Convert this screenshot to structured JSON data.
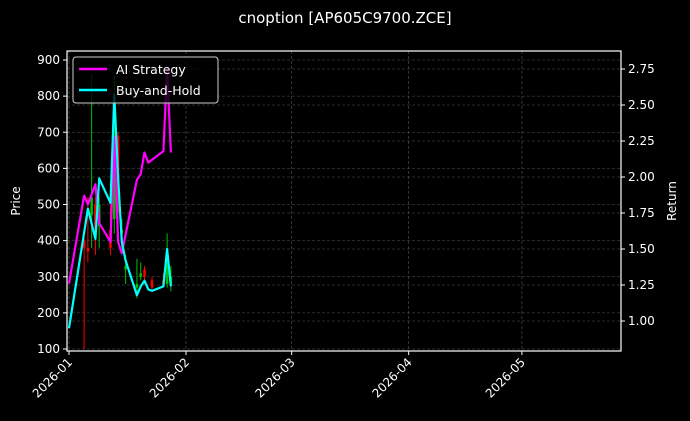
{
  "chart_data": {
    "type": "line",
    "title": "cnoption [AP605C9700.ZCE]",
    "xlabel": "",
    "ylabel": "Price",
    "y2label": "Return",
    "ylim": [
      93,
      920
    ],
    "y2lim": [
      0.8,
      2.87
    ],
    "grid": true,
    "legend_position": "upper left",
    "theme": "dark",
    "x_ticks": [
      "2026-01",
      "2026-02",
      "2026-03",
      "2026-04",
      "2026-05"
    ],
    "y_ticks": [
      100,
      200,
      300,
      400,
      500,
      600,
      700,
      800,
      900
    ],
    "y2_ticks": [
      "1.00",
      "1.25",
      "1.50",
      "1.75",
      "2.00",
      "2.25",
      "2.50",
      "2.75"
    ],
    "colors": {
      "ai_strategy": "#ff00ff",
      "buy_and_hold": "#00ffff",
      "candle_up": "#00c000",
      "candle_down": "#ff0000",
      "grid": "#555555",
      "axes": "#ffffff",
      "background": "#000000"
    },
    "series": [
      {
        "name": "AI Strategy",
        "axis": "return",
        "x": [
          "2026-01-01",
          "2026-01-05",
          "2026-01-06",
          "2026-01-08",
          "2026-01-09",
          "2026-01-12",
          "2026-01-13",
          "2026-01-14",
          "2026-01-15",
          "2026-01-16",
          "2026-01-19",
          "2026-01-20",
          "2026-01-21",
          "2026-01-22",
          "2026-01-23",
          "2026-01-26",
          "2026-01-27",
          "2026-01-28"
        ],
        "values": [
          1.26,
          1.87,
          1.81,
          1.95,
          1.68,
          1.55,
          2.28,
          1.55,
          1.47,
          1.6,
          1.98,
          2.02,
          2.17,
          2.1,
          2.12,
          2.18,
          2.75,
          2.17
        ]
      },
      {
        "name": "Buy-and-Hold",
        "axis": "return",
        "x": [
          "2026-01-01",
          "2026-01-06",
          "2026-01-08",
          "2026-01-09",
          "2026-01-12",
          "2026-01-13",
          "2026-01-14",
          "2026-01-15",
          "2026-01-16",
          "2026-01-19",
          "2026-01-20",
          "2026-01-21",
          "2026-01-22",
          "2026-01-23",
          "2026-01-26",
          "2026-01-27",
          "2026-01-28"
        ],
        "values": [
          0.95,
          1.78,
          1.57,
          1.99,
          1.82,
          2.57,
          2.0,
          1.55,
          1.42,
          1.18,
          1.24,
          1.28,
          1.22,
          1.21,
          1.24,
          1.5,
          1.24
        ]
      }
    ],
    "candles": [
      {
        "date": "2026-01-05",
        "open": 400,
        "close": 380,
        "high": 410,
        "low": 100
      },
      {
        "date": "2026-01-06",
        "open": 380,
        "close": 370,
        "high": 520,
        "low": 340
      },
      {
        "date": "2026-01-07",
        "open": 470,
        "close": 520,
        "high": 860,
        "low": 380
      },
      {
        "date": "2026-01-08",
        "open": 500,
        "close": 420,
        "high": 520,
        "low": 360
      },
      {
        "date": "2026-01-09",
        "open": 440,
        "close": 500,
        "high": 520,
        "low": 380
      },
      {
        "date": "2026-01-12",
        "open": 430,
        "close": 380,
        "high": 500,
        "low": 360
      },
      {
        "date": "2026-01-13",
        "open": 460,
        "close": 690,
        "high": 860,
        "low": 420
      },
      {
        "date": "2026-01-14",
        "open": 690,
        "close": 480,
        "high": 700,
        "low": 420
      },
      {
        "date": "2026-01-15",
        "open": 420,
        "close": 430,
        "high": 460,
        "low": 380
      },
      {
        "date": "2026-01-16",
        "open": 320,
        "close": 330,
        "high": 360,
        "low": 280
      },
      {
        "date": "2026-01-19",
        "open": 270,
        "close": 280,
        "high": 350,
        "low": 240
      },
      {
        "date": "2026-01-20",
        "open": 300,
        "close": 310,
        "high": 340,
        "low": 290
      },
      {
        "date": "2026-01-21",
        "open": 320,
        "close": 300,
        "high": 330,
        "low": 280
      },
      {
        "date": "2026-01-23",
        "open": 290,
        "close": 270,
        "high": 300,
        "low": 260
      },
      {
        "date": "2026-01-26",
        "open": 290,
        "close": 280,
        "high": 310,
        "low": 270
      },
      {
        "date": "2026-01-27",
        "open": 280,
        "close": 340,
        "high": 420,
        "low": 270
      },
      {
        "date": "2026-01-28",
        "open": 280,
        "close": 300,
        "high": 330,
        "low": 260
      }
    ]
  },
  "legend": {
    "items": [
      {
        "label": "AI Strategy",
        "color": "#ff00ff"
      },
      {
        "label": "Buy-and-Hold",
        "color": "#00ffff"
      }
    ]
  }
}
